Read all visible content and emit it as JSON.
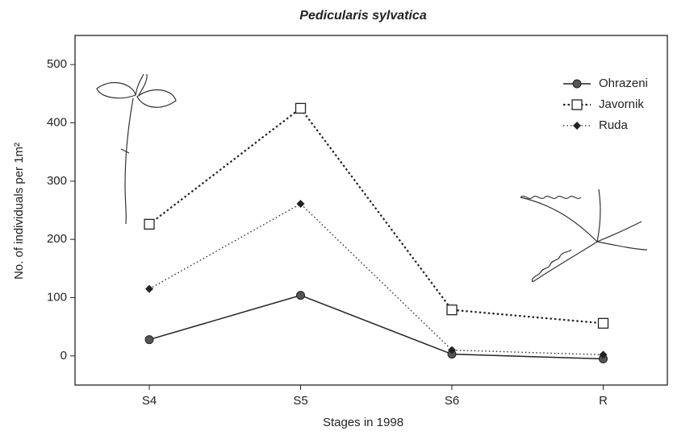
{
  "chart_data": {
    "type": "line",
    "title": "Pedicularis sylvatica",
    "x_label": "Stages in 1998",
    "y_label": "No. of individuals per 1m²",
    "categories": [
      "S4",
      "S5",
      "S6",
      "R"
    ],
    "series": [
      {
        "name": "Ohrazeni",
        "color": "#222222",
        "linestyle": "solid",
        "marker": "circle",
        "values": [
          28,
          104,
          3,
          -5
        ]
      },
      {
        "name": "Javornik",
        "color": "#222222",
        "linestyle": "dotted",
        "marker": "square",
        "values": [
          226,
          425,
          79,
          56
        ]
      },
      {
        "name": "Ruda",
        "color": "#222222",
        "linestyle": "fine-dotted",
        "marker": "diamond",
        "values": [
          115,
          261,
          10,
          2
        ]
      }
    ],
    "ylim": [
      -50,
      550
    ],
    "yticks": [
      0,
      100,
      200,
      300,
      400,
      500
    ],
    "legend": "top-right",
    "grid": false
  }
}
